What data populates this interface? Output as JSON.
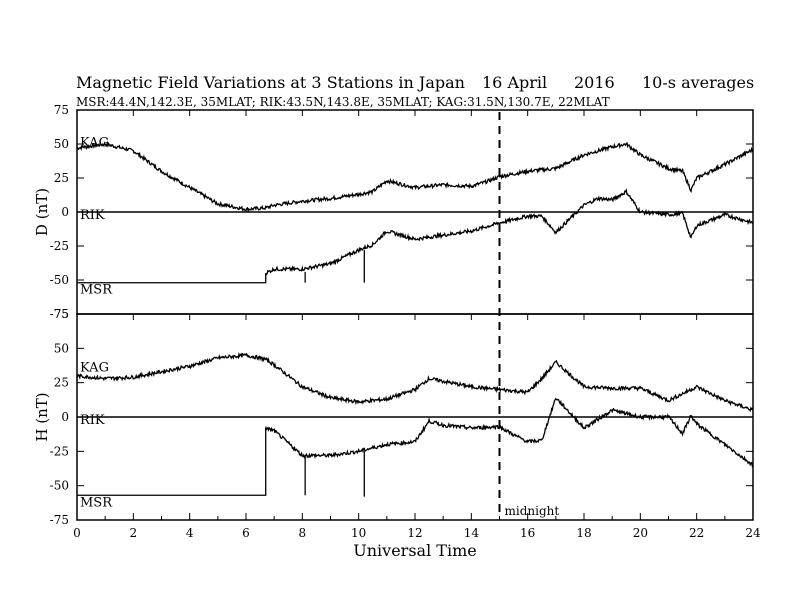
{
  "chart_data": {
    "type": "line",
    "title": "Magnetic Field Variations at 3 Stations in Japan",
    "date": "16  April",
    "year": "2016",
    "averaging": "10-s averages",
    "subtitle": "MSR:44.4N,142.3E, 35MLAT;  RIK:43.5N,143.8E, 35MLAT;  KAG:31.5N,130.7E, 22MLAT",
    "xlabel": "Universal Time",
    "xlim": [
      0,
      24
    ],
    "xticks": [
      "0",
      "2",
      "4",
      "6",
      "8",
      "10",
      "12",
      "14",
      "16",
      "18",
      "20",
      "22",
      "24"
    ],
    "midnight_marker": {
      "x": 15,
      "label": "midnight"
    },
    "grid": false,
    "panels": [
      {
        "ylabel": "D (nT)",
        "ylim": [
          -75,
          75
        ],
        "yticks": [
          "75",
          "50",
          "25",
          "0",
          "-25",
          "-50",
          "-75"
        ],
        "series": [
          {
            "name": "KAG",
            "x": [
              0,
              1,
              2,
              3,
              4,
              5,
              6,
              6.7,
              7,
              8,
              9,
              10,
              10.5,
              11,
              12,
              13,
              14,
              14.5,
              15,
              16,
              17,
              18,
              19,
              19.5,
              20,
              21,
              21.5,
              21.8,
              22,
              23,
              24
            ],
            "y": [
              47,
              50,
              45,
              30,
              18,
              6,
              2,
              3,
              5,
              8,
              10,
              13,
              15,
              23,
              18,
              20,
              19,
              22,
              26,
              30,
              32,
              42,
              48,
              50,
              42,
              32,
              30,
              16,
              25,
              35,
              46
            ]
          },
          {
            "name": "RIK",
            "x": [
              6.7,
              7,
              8,
              9,
              9.5,
              10,
              10.5,
              11,
              12,
              13,
              14,
              15,
              16,
              16.5,
              17,
              18,
              18.5,
              19,
              19.5,
              20,
              21,
              21.5,
              21.8,
              22,
              23,
              24
            ],
            "y": [
              -45,
              -42,
              -42,
              -38,
              -33,
              -28,
              -24,
              -14,
              -20,
              -17,
              -14,
              -8,
              -3,
              -3,
              -15,
              5,
              10,
              9,
              15,
              0,
              -2,
              -1,
              -19,
              -10,
              -2,
              -8
            ]
          },
          {
            "name": "MSR",
            "x": [
              0,
              6.7
            ],
            "y": [
              -52,
              -52
            ]
          }
        ],
        "spikes": [
          {
            "x": 8.1,
            "y_from": -44,
            "y_to": -52
          },
          {
            "x": 10.2,
            "y_from": -28,
            "y_to": -52
          }
        ]
      },
      {
        "ylabel": "H (nT)",
        "ylim": [
          -75,
          75
        ],
        "yticks": [
          "75",
          "50",
          "25",
          "0",
          "-25",
          "-50",
          "-75"
        ],
        "series": [
          {
            "name": "KAG",
            "x": [
              0,
              1,
              2,
              3,
              4,
              5,
              6,
              6.7,
              7,
              8,
              9,
              10,
              11,
              12,
              12.5,
              13,
              14,
              15,
              16,
              16.5,
              17,
              18,
              19,
              20,
              21,
              22,
              23,
              24
            ],
            "y": [
              30,
              28,
              29,
              33,
              37,
              43,
              45,
              42,
              38,
              22,
              14,
              11,
              13,
              20,
              28,
              26,
              22,
              20,
              18,
              28,
              40,
              22,
              21,
              21,
              12,
              22,
              12,
              5
            ]
          },
          {
            "name": "RIK",
            "x": [
              6.7,
              7,
              8,
              9,
              10,
              11,
              12,
              12.5,
              13,
              14,
              15,
              15.5,
              16,
              16.5,
              17,
              18,
              19,
              20,
              21,
              21.5,
              21.8,
              22,
              23,
              24
            ],
            "y": [
              -8,
              -10,
              -28,
              -28,
              -25,
              -20,
              -18,
              -3,
              -6,
              -8,
              -7,
              -13,
              -18,
              -17,
              14,
              -8,
              5,
              0,
              0,
              -12,
              1,
              -5,
              -20,
              -35
            ]
          },
          {
            "name": "MSR",
            "x": [
              0,
              6.7
            ],
            "y": [
              -57,
              -57
            ]
          }
        ],
        "spikes": [
          {
            "x": 8.1,
            "y_from": -28,
            "y_to": -57
          },
          {
            "x": 10.2,
            "y_from": -25,
            "y_to": -58
          }
        ]
      }
    ]
  }
}
